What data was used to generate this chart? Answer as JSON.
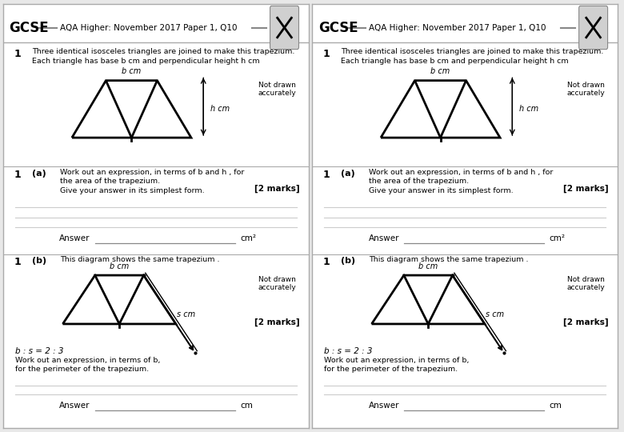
{
  "title": "AQA Higher: November 2017 Paper 1, Q10",
  "bg_color": "#e8e8e8",
  "panel_bg": "#ffffff",
  "question_text_1": "Three identical isosceles triangles are joined to make this trapezium.",
  "question_text_2": "Each triangle has base b cm and perpendicular height h cm",
  "not_drawn": "Not drawn\naccurately",
  "q1a_text_1": "Work out an expression, in terms of b and h , for",
  "q1a_text_2": "the area of the trapezium.",
  "q1a_text_3": "Give your answer in its simplest form.",
  "marks_2": "[2 marks]",
  "answer_label": "Answer",
  "unit_a": "cm²",
  "q1b_text": "This diagram shows the same trapezium .",
  "ratio_text": "b : s = 2 : 3",
  "perimeter_text_1": "Work out an expression, in terms of b,",
  "perimeter_text_2": "for the perimeter of the trapezium.",
  "unit_b": "cm",
  "b_label": "b cm",
  "h_label": "h cm",
  "s_label": "s cm"
}
